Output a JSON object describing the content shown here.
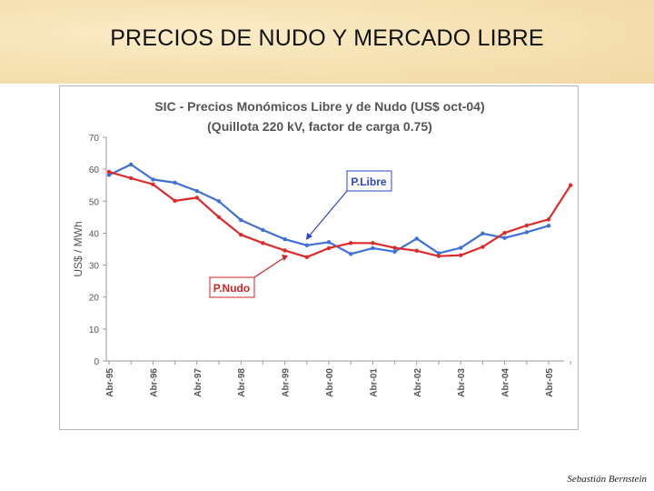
{
  "slide": {
    "title": "PRECIOS DE NUDO Y MERCADO LIBRE",
    "author": "Sebastián Bernstein"
  },
  "chart_data": {
    "type": "line",
    "title": "SIC - Precios Monómicos Libre y de Nudo (US$ oct-04)",
    "subtitle": "(Quillota 220 kV, factor de carga 0.75)",
    "ylabel": "US$ / MWh",
    "xlabel": "",
    "ylim": [
      0,
      70
    ],
    "yticks": [
      "0",
      "10",
      "20",
      "30",
      "40",
      "50",
      "60",
      "70"
    ],
    "categories": [
      "Abr-95",
      "Abr-96",
      "Abr-97",
      "Abr-98",
      "Abr-99",
      "Abr-00",
      "Abr-01",
      "Abr-02",
      "Abr-03",
      "Abr-04",
      "Abr-05"
    ],
    "grid": false,
    "series": [
      {
        "name": "P.Libre",
        "color": "#3f6fd8",
        "x": [
          0,
          0.5,
          1,
          1.5,
          2,
          2.5,
          3,
          3.5,
          4,
          4.5,
          5,
          5.5,
          6,
          6.5,
          7,
          7.5,
          8,
          8.5,
          9,
          9.5,
          10
        ],
        "values": [
          58.2,
          61.5,
          56.8,
          55.8,
          53.2,
          50.0,
          44.1,
          41.0,
          38.1,
          36.2,
          37.2,
          33.5,
          35.3,
          34.2,
          38.3,
          33.7,
          35.4,
          39.9,
          38.5,
          40.3,
          42.3
        ]
      },
      {
        "name": "P.Nudo",
        "color": "#dd2a2a",
        "x": [
          0,
          0.5,
          1,
          1.5,
          2,
          2.5,
          3,
          3.5,
          4,
          4.5,
          5,
          5.5,
          6,
          6.5,
          7,
          7.5,
          8,
          8.5,
          9,
          9.5,
          10,
          10.5
        ],
        "values": [
          59.2,
          57.2,
          55.3,
          50.1,
          51.1,
          45.0,
          39.5,
          36.9,
          34.6,
          32.5,
          35.3,
          36.9,
          36.9,
          35.4,
          34.5,
          32.8,
          33.1,
          35.7,
          40.1,
          42.4,
          44.3,
          55.0
        ]
      }
    ],
    "annotations": [
      {
        "text": "P.Libre",
        "color": "#2b46c8"
      },
      {
        "text": "P.Nudo",
        "color": "#d42323"
      }
    ]
  }
}
